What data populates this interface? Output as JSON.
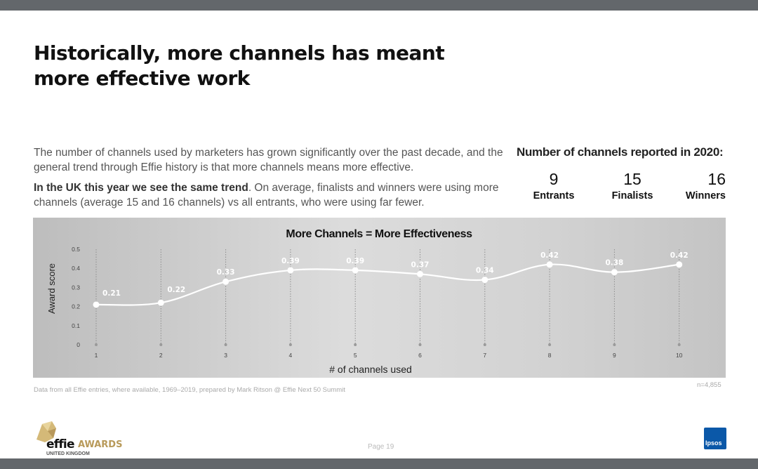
{
  "headline": {
    "line1": "Historically, more channels has meant",
    "line2": "more effective work"
  },
  "body": {
    "paragraph1": "The number of channels used by marketers has  grown significantly over the past decade, and the general trend through Effie history is that more channels means more effective.",
    "paragraph2_bold": "In the UK this year we see the same trend",
    "paragraph2_rest": ". On average, finalists and winners were using more channels (average 15 and 16 channels) vs all entrants, who were using far fewer."
  },
  "stats": {
    "title": "Number of channels reported in 2020:",
    "items": [
      {
        "value": "9",
        "label": "Entrants"
      },
      {
        "value": "15",
        "label": "Finalists"
      },
      {
        "value": "16",
        "label": "Winners"
      }
    ]
  },
  "chart_data": {
    "type": "line",
    "title": "More Channels = More Effectiveness",
    "xlabel": "# of channels used",
    "ylabel": "Award score",
    "x": [
      1,
      2,
      3,
      4,
      5,
      6,
      7,
      8,
      9,
      10
    ],
    "y": [
      0.21,
      0.22,
      0.33,
      0.39,
      0.39,
      0.37,
      0.34,
      0.42,
      0.38,
      0.42
    ],
    "data_labels": [
      "0.21",
      "0.22",
      "0.33",
      "0.39",
      "0.39",
      "0.37",
      "0.34",
      "0.42",
      "0.38",
      "0.42"
    ],
    "yticks": [
      "0",
      "0.1",
      "0.2",
      "0.3",
      "0.4",
      "0.5"
    ],
    "xticks": [
      "1",
      "2",
      "3",
      "4",
      "5",
      "6",
      "7",
      "8",
      "9",
      "10"
    ],
    "ylim": [
      0,
      0.5
    ],
    "grid": "vertical dotted",
    "line_color": "#ffffff"
  },
  "footer": {
    "source": "Data from all Effie entries, where available, 1969–2019, prepared by Mark Ritson @ Effie Next 50 Summit",
    "n_note": "n=4,855",
    "page": "Page 19"
  },
  "logos": {
    "effie_word": "effie",
    "effie_awards": "AWARDS",
    "effie_region": "UNITED KINGDOM",
    "ipsos": "Ipsos"
  }
}
